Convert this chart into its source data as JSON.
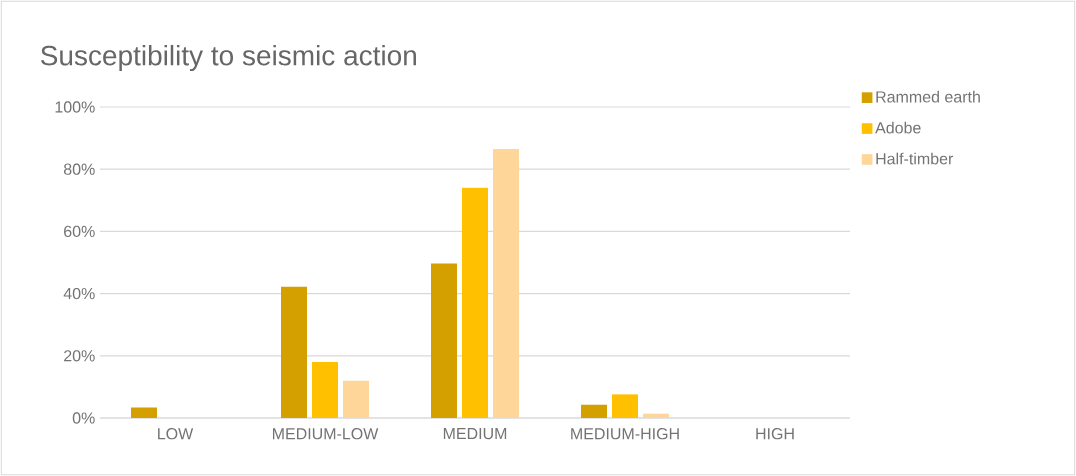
{
  "chart_data": {
    "type": "bar",
    "title": "Susceptibility to seismic action",
    "categories": [
      "LOW",
      "MEDIUM-LOW",
      "MEDIUM",
      "MEDIUM-HIGH",
      "HIGH"
    ],
    "series": [
      {
        "name": "Rammed earth",
        "color": "#d4a000",
        "values": [
          3.4,
          42.2,
          49.7,
          4.3,
          0
        ]
      },
      {
        "name": "Adobe",
        "color": "#ffc000",
        "values": [
          0,
          18.0,
          74.0,
          7.6,
          0
        ]
      },
      {
        "name": "Half-timber",
        "color": "#ffd699",
        "values": [
          0,
          12.0,
          86.5,
          1.4,
          0
        ]
      }
    ],
    "ylim": [
      0,
      100
    ],
    "yticks": [
      {
        "value": 0,
        "label": "0%"
      },
      {
        "value": 20,
        "label": "20%"
      },
      {
        "value": 40,
        "label": "40%"
      },
      {
        "value": 60,
        "label": "60%"
      },
      {
        "value": 80,
        "label": "80%"
      },
      {
        "value": 100,
        "label": "100%"
      }
    ],
    "grid": "y",
    "legend": "top right"
  }
}
